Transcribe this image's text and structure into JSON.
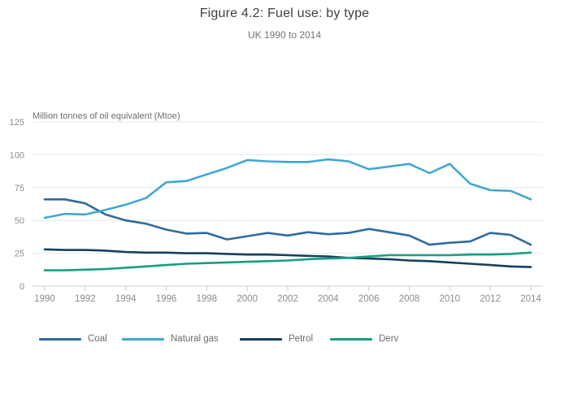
{
  "header": {
    "title": "Figure 4.2: Fuel use: by type",
    "subtitle": "UK 1990 to 2014"
  },
  "chart_data": {
    "type": "line",
    "title": "Figure 4.2: Fuel use: by type",
    "subtitle": "UK 1990 to 2014",
    "ylabel": "Million tonnes of oil equivalent (Mtoe)",
    "xlabel": "",
    "ylim": [
      0,
      125
    ],
    "yticks": [
      0,
      25,
      50,
      75,
      100,
      125
    ],
    "xticks": [
      1990,
      1992,
      1994,
      1996,
      1998,
      2000,
      2002,
      2004,
      2006,
      2008,
      2010,
      2012,
      2014
    ],
    "grid": true,
    "legend_position": "bottom",
    "x": [
      1990,
      1991,
      1992,
      1993,
      1994,
      1995,
      1996,
      1997,
      1998,
      1999,
      2000,
      2001,
      2002,
      2003,
      2004,
      2005,
      2006,
      2007,
      2008,
      2009,
      2010,
      2011,
      2012,
      2013,
      2014
    ],
    "series": [
      {
        "name": "Coal",
        "color": "#2e6b9f",
        "values": [
          66,
          66,
          63,
          54.5,
          50,
          47.5,
          43,
          40,
          40.5,
          35.5,
          38,
          40.5,
          38.5,
          41,
          39.5,
          40.5,
          43.5,
          41,
          38.5,
          31.5,
          33,
          34,
          40.5,
          39,
          31.5
        ]
      },
      {
        "name": "Natural gas",
        "color": "#41a7d3",
        "values": [
          52,
          55,
          54.5,
          58,
          62,
          67,
          79,
          80,
          85,
          90,
          96,
          95,
          94.5,
          94.5,
          96.5,
          95,
          89,
          91,
          93,
          86,
          93,
          78,
          73,
          72.5,
          66
        ]
      },
      {
        "name": "Petrol",
        "color": "#173f5c",
        "values": [
          28,
          27.5,
          27.5,
          27,
          26,
          25.5,
          25.5,
          25,
          25,
          24.5,
          24,
          24,
          23.5,
          23,
          22.5,
          21.5,
          21,
          20.5,
          19.5,
          19,
          18,
          17,
          16,
          15,
          14.5
        ]
      },
      {
        "name": "Derv",
        "color": "#1a9c82",
        "values": [
          12,
          12,
          12.5,
          13,
          14,
          15,
          16,
          17,
          17.5,
          18,
          18.5,
          19,
          19.5,
          20.5,
          21,
          21.5,
          22.5,
          23.5,
          23.5,
          23.5,
          23.5,
          24,
          24,
          24.5,
          25.5
        ]
      }
    ]
  }
}
